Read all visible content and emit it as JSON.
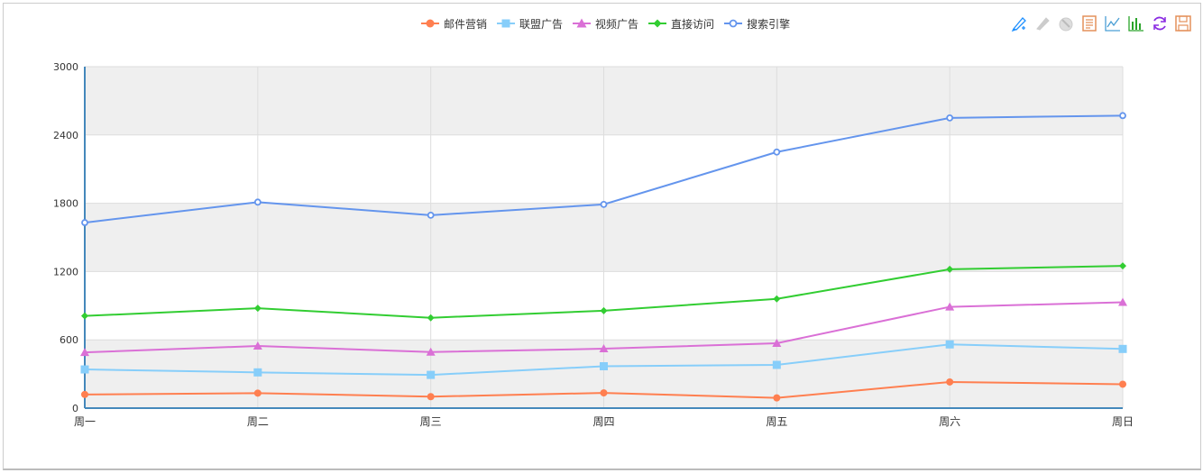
{
  "legend": {
    "items": [
      {
        "label": "邮件营销",
        "color": "#ff7f50",
        "symbol": "circle"
      },
      {
        "label": "联盟广告",
        "color": "#87cefa",
        "symbol": "square"
      },
      {
        "label": "视频广告",
        "color": "#da70d6",
        "symbol": "triangle"
      },
      {
        "label": "直接访问",
        "color": "#32cd32",
        "symbol": "diamond"
      },
      {
        "label": "搜索引擎",
        "color": "#6495ed",
        "symbol": "empty-circle"
      }
    ]
  },
  "toolbox": {
    "icons": [
      {
        "name": "mark-icon",
        "color": "#1e90ff"
      },
      {
        "name": "mark-undo-icon",
        "color": "#bbb"
      },
      {
        "name": "mark-clear-icon",
        "color": "#bbb"
      },
      {
        "name": "data-view-icon",
        "color": "#e4905a"
      },
      {
        "name": "line-chart-icon",
        "color": "#4b9fd5"
      },
      {
        "name": "bar-chart-icon",
        "color": "#2aa42a"
      },
      {
        "name": "restore-icon",
        "color": "#8a2be2"
      },
      {
        "name": "save-image-icon",
        "color": "#e4905a"
      }
    ]
  },
  "chart_data": {
    "type": "line",
    "stacked": true,
    "title": "",
    "xlabel": "",
    "ylabel": "",
    "categories": [
      "周一",
      "周二",
      "周三",
      "周四",
      "周五",
      "周六",
      "周日"
    ],
    "ylim": [
      0,
      3000
    ],
    "yticks": [
      0,
      600,
      1200,
      1800,
      2400,
      3000
    ],
    "grid": true,
    "legend_position": "top",
    "series": [
      {
        "name": "邮件营销",
        "values": [
          120,
          132,
          101,
          134,
          90,
          230,
          210
        ]
      },
      {
        "name": "联盟广告",
        "values": [
          220,
          182,
          191,
          234,
          290,
          330,
          310
        ]
      },
      {
        "name": "视频广告",
        "values": [
          150,
          232,
          201,
          154,
          190,
          330,
          410
        ]
      },
      {
        "name": "直接访问",
        "values": [
          320,
          332,
          301,
          334,
          390,
          330,
          320
        ]
      },
      {
        "name": "搜索引擎",
        "values": [
          820,
          932,
          901,
          934,
          1290,
          1330,
          1320
        ]
      }
    ]
  }
}
